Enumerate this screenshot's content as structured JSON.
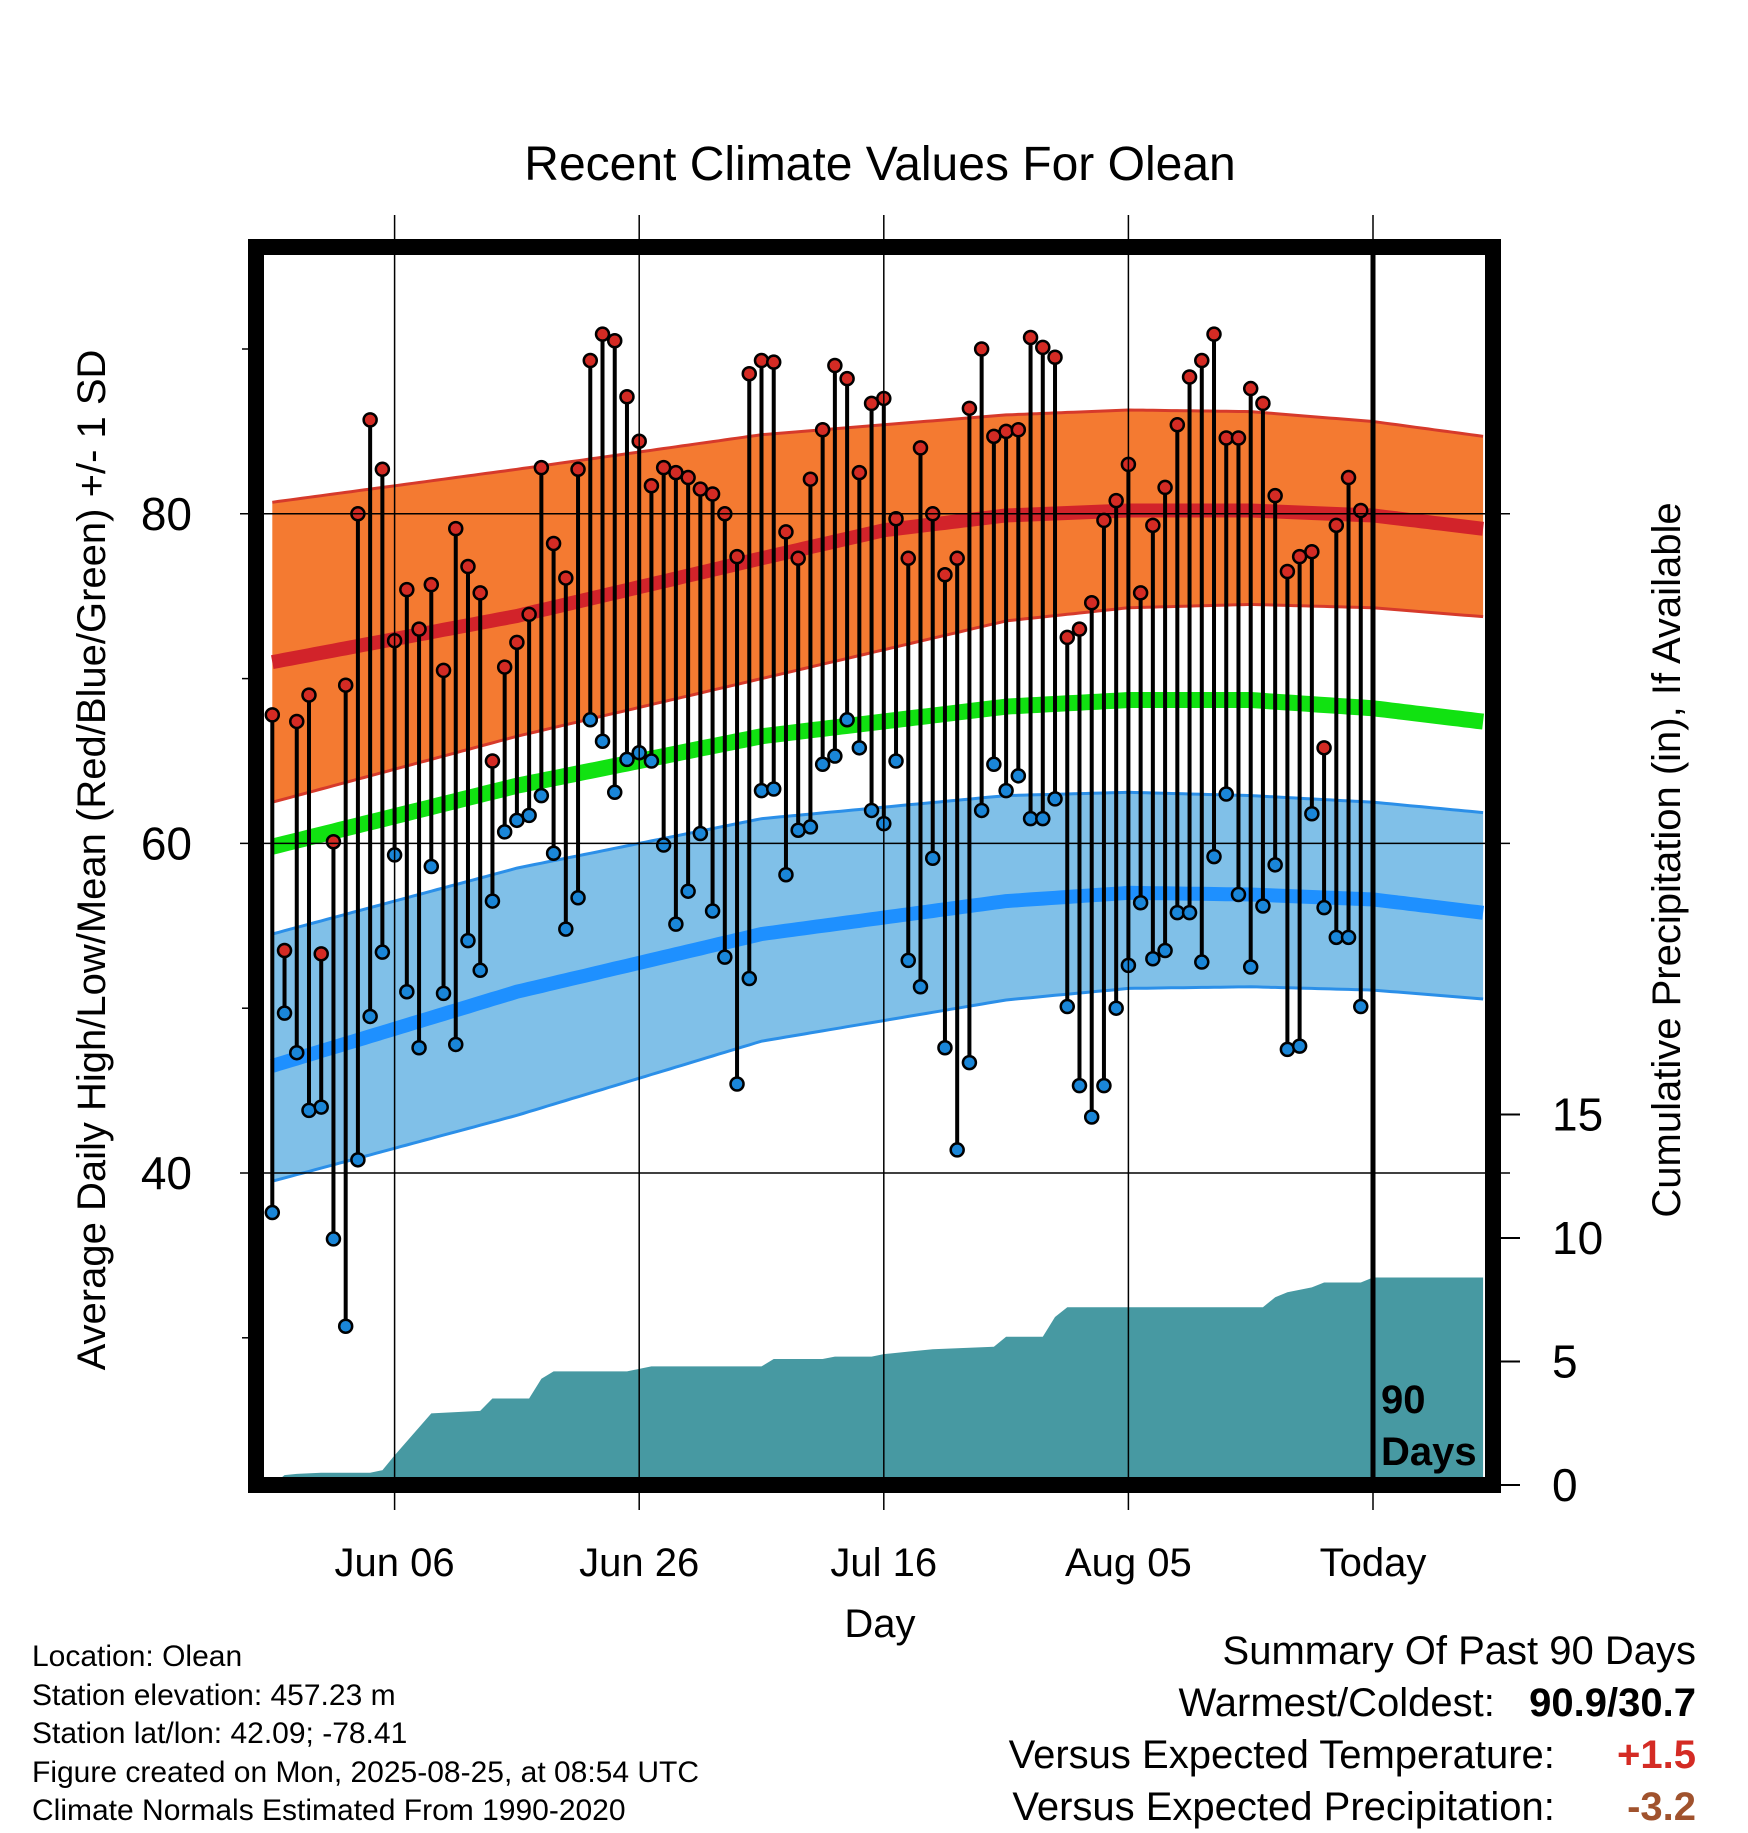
{
  "chart_data": {
    "type": "line",
    "title": "Recent Climate Values For Olean",
    "xlabel": "Day",
    "ylabel": "Average Daily High/Low/Mean (Red/Blue/Green) +/- 1 SD",
    "y2label": "Cumulative Precipitation (in), If Available",
    "x_tick_labels": [
      "Jun 06",
      "Jun 26",
      "Jul 16",
      "Aug 05",
      "Today"
    ],
    "y_tick_labels": [
      "40",
      "60",
      "80"
    ],
    "y2_tick_labels": [
      "0",
      "5",
      "10",
      "15"
    ],
    "today_label": [
      "90",
      "Days"
    ],
    "ylim": [
      23,
      97
    ],
    "y2lim": [
      0,
      15
    ],
    "xlim_days_from_today": [
      -90,
      9
    ],
    "normal_high": {
      "mean_ctrl": [
        [
          -90,
          71.0
        ],
        [
          -64,
          75.5
        ],
        [
          -38,
          78.7
        ],
        [
          -25,
          79.9
        ],
        [
          -20,
          80.2
        ],
        [
          -5,
          80.2
        ],
        [
          5,
          79.4
        ],
        [
          12,
          78.0
        ],
        [
          20,
          76.5
        ],
        [
          26,
          75.0
        ],
        [
          31,
          73.0
        ],
        [
          36,
          71.2
        ],
        [
          9,
          75.7
        ]
      ],
      "mean": [
        [
          -90,
          71.0
        ],
        [
          -70,
          73.8
        ],
        [
          -50,
          77.3
        ],
        [
          -40,
          79.0
        ],
        [
          -30,
          79.9
        ],
        [
          -20,
          80.2
        ],
        [
          -10,
          80.2
        ],
        [
          0,
          79.9
        ],
        [
          10,
          79.0
        ],
        [
          20,
          77.8
        ],
        [
          30,
          76.4
        ],
        [
          40,
          74.8
        ],
        [
          50,
          73.3
        ],
        [
          60,
          71.8
        ],
        [
          70,
          70.3
        ]
      ],
      "upper": [
        [
          -90,
          80.7
        ],
        [
          -70,
          82.7
        ],
        [
          -50,
          84.8
        ],
        [
          -30,
          86.0
        ],
        [
          -20,
          86.3
        ],
        [
          -10,
          86.2
        ],
        [
          0,
          85.6
        ],
        [
          10,
          84.6
        ],
        [
          20,
          83.5
        ],
        [
          27,
          82.5
        ],
        [
          30,
          81.8
        ],
        [
          40,
          79.3
        ],
        [
          50,
          76.7
        ],
        [
          60,
          74.5
        ],
        [
          70,
          73.0
        ]
      ],
      "lower": [
        [
          -90,
          62.5
        ],
        [
          -70,
          66.5
        ],
        [
          -50,
          70.0
        ],
        [
          -30,
          73.5
        ],
        [
          -20,
          74.3
        ],
        [
          -10,
          74.5
        ],
        [
          0,
          74.3
        ],
        [
          10,
          73.7
        ],
        [
          20,
          72.8
        ],
        [
          30,
          71.5
        ],
        [
          40,
          70.0
        ],
        [
          50,
          69.0
        ],
        [
          60,
          68.0
        ],
        [
          70,
          67.0
        ]
      ]
    },
    "normal_mean_line": [
      [
        -90,
        59.8
      ],
      [
        -70,
        63.5
      ],
      [
        -50,
        66.5
      ],
      [
        -30,
        68.3
      ],
      [
        -20,
        68.7
      ],
      [
        -10,
        68.7
      ],
      [
        0,
        68.2
      ],
      [
        10,
        67.3
      ],
      [
        20,
        66.3
      ],
      [
        30,
        65.2
      ],
      [
        40,
        64.0
      ],
      [
        50,
        63.0
      ]
    ],
    "normal_low": {
      "mean": [
        [
          -90,
          46.5
        ],
        [
          -70,
          51.0
        ],
        [
          -50,
          54.5
        ],
        [
          -30,
          56.5
        ],
        [
          -20,
          57.0
        ],
        [
          -10,
          56.9
        ],
        [
          0,
          56.6
        ],
        [
          10,
          55.7
        ],
        [
          20,
          54.5
        ],
        [
          30,
          53.0
        ],
        [
          40,
          51.5
        ],
        [
          50,
          50.0
        ]
      ],
      "upper": [
        [
          -90,
          54.5
        ],
        [
          -70,
          58.5
        ],
        [
          -50,
          61.5
        ],
        [
          -30,
          62.9
        ],
        [
          -20,
          63.1
        ],
        [
          -10,
          62.9
        ],
        [
          0,
          62.5
        ],
        [
          10,
          61.8
        ],
        [
          20,
          60.8
        ],
        [
          30,
          59.6
        ],
        [
          40,
          58.0
        ],
        [
          50,
          56.5
        ]
      ],
      "lower": [
        [
          -90,
          39.5
        ],
        [
          -70,
          43.5
        ],
        [
          -50,
          48.0
        ],
        [
          -30,
          50.5
        ],
        [
          -20,
          51.2
        ],
        [
          -10,
          51.3
        ],
        [
          0,
          51.1
        ],
        [
          10,
          50.5
        ],
        [
          20,
          49.4
        ],
        [
          30,
          48.0
        ],
        [
          40,
          46.0
        ],
        [
          50,
          44.0
        ]
      ]
    },
    "daily": [
      {
        "d": -90,
        "hi": 67.8,
        "lo": 37.6
      },
      {
        "d": -89,
        "hi": 53.5,
        "lo": 49.7
      },
      {
        "d": -88,
        "hi": 67.4,
        "lo": 47.3
      },
      {
        "d": -87,
        "hi": 69.0,
        "lo": 43.8
      },
      {
        "d": -86,
        "hi": 53.3,
        "lo": 44.0
      },
      {
        "d": -85,
        "hi": 60.1,
        "lo": 36.0
      },
      {
        "d": -84,
        "hi": 69.6,
        "lo": 30.7
      },
      {
        "d": -83,
        "hi": 80.0,
        "lo": 40.8
      },
      {
        "d": -82,
        "hi": 85.7,
        "lo": 49.5
      },
      {
        "d": -81,
        "hi": 82.7,
        "lo": 53.4
      },
      {
        "d": -80,
        "hi": 72.3,
        "lo": 59.3
      },
      {
        "d": -79,
        "hi": 75.4,
        "lo": 51.0
      },
      {
        "d": -78,
        "hi": 73.0,
        "lo": 47.6
      },
      {
        "d": -77,
        "hi": 75.7,
        "lo": 58.6
      },
      {
        "d": -76,
        "hi": 70.5,
        "lo": 50.9
      },
      {
        "d": -75,
        "hi": 79.1,
        "lo": 47.8
      },
      {
        "d": -74,
        "hi": 76.8,
        "lo": 54.1
      },
      {
        "d": -73,
        "hi": 75.2,
        "lo": 52.3
      },
      {
        "d": -72,
        "hi": 65.0,
        "lo": 56.5
      },
      {
        "d": -71,
        "hi": 70.7,
        "lo": 60.7
      },
      {
        "d": -70,
        "hi": 72.2,
        "lo": 61.4
      },
      {
        "d": -69,
        "hi": 73.9,
        "lo": 61.7
      },
      {
        "d": -68,
        "hi": 82.8,
        "lo": 62.9
      },
      {
        "d": -67,
        "hi": 78.2,
        "lo": 59.4
      },
      {
        "d": -66,
        "hi": 76.1,
        "lo": 54.8
      },
      {
        "d": -65,
        "hi": 82.7,
        "lo": 56.7
      },
      {
        "d": -64,
        "hi": 89.3,
        "lo": 67.5
      },
      {
        "d": -63,
        "hi": 90.9,
        "lo": 66.2
      },
      {
        "d": -62,
        "hi": 90.5,
        "lo": 63.1
      },
      {
        "d": -61,
        "hi": 87.1,
        "lo": 65.1
      },
      {
        "d": -60,
        "hi": 84.4,
        "lo": 65.5
      },
      {
        "d": -59,
        "hi": 81.7,
        "lo": 65.0
      },
      {
        "d": -58,
        "hi": 82.8,
        "lo": 59.9
      },
      {
        "d": -57,
        "hi": 82.5,
        "lo": 55.1
      },
      {
        "d": -56,
        "hi": 82.2,
        "lo": 57.1
      },
      {
        "d": -55,
        "hi": 81.5,
        "lo": 60.6
      },
      {
        "d": -54,
        "hi": 81.2,
        "lo": 55.9
      },
      {
        "d": -53,
        "hi": 80.0,
        "lo": 53.1
      },
      {
        "d": -52,
        "hi": 77.4,
        "lo": 45.4
      },
      {
        "d": -51,
        "hi": 88.5,
        "lo": 51.8
      },
      {
        "d": -50,
        "hi": 89.3,
        "lo": 63.2
      },
      {
        "d": -49,
        "hi": 89.2,
        "lo": 63.3
      },
      {
        "d": -48,
        "hi": 78.9,
        "lo": 58.1
      },
      {
        "d": -47,
        "hi": 77.3,
        "lo": 60.8
      },
      {
        "d": -46,
        "hi": 82.1,
        "lo": 61.0
      },
      {
        "d": -45,
        "hi": 85.1,
        "lo": 64.8
      },
      {
        "d": -44,
        "hi": 89.0,
        "lo": 65.3
      },
      {
        "d": -43,
        "hi": 88.2,
        "lo": 67.5
      },
      {
        "d": -42,
        "hi": 82.5,
        "lo": 65.8
      },
      {
        "d": -41,
        "hi": 86.7,
        "lo": 62.0
      },
      {
        "d": -40,
        "hi": 87.0,
        "lo": 61.2
      },
      {
        "d": -39,
        "hi": 79.7,
        "lo": 65.0
      },
      {
        "d": -38,
        "hi": 77.3,
        "lo": 52.9
      },
      {
        "d": -37,
        "hi": 84.0,
        "lo": 51.3
      },
      {
        "d": -36,
        "hi": 80.0,
        "lo": 59.1
      },
      {
        "d": -35,
        "hi": 76.3,
        "lo": 47.6
      },
      {
        "d": -34,
        "hi": 77.3,
        "lo": 41.4
      },
      {
        "d": -33,
        "hi": 86.4,
        "lo": 46.7
      },
      {
        "d": -32,
        "hi": 90.0,
        "lo": 62.0
      },
      {
        "d": -31,
        "hi": 84.7,
        "lo": 64.8
      },
      {
        "d": -30,
        "hi": 85.0,
        "lo": 63.2
      },
      {
        "d": -29,
        "hi": 85.1,
        "lo": 64.1
      },
      {
        "d": -28,
        "hi": 90.7,
        "lo": 61.5
      },
      {
        "d": -27,
        "hi": 90.1,
        "lo": 61.5
      },
      {
        "d": -26,
        "hi": 89.5,
        "lo": 62.7
      },
      {
        "d": -25,
        "hi": 72.5,
        "lo": 50.1
      },
      {
        "d": -24,
        "hi": 73.0,
        "lo": 45.3
      },
      {
        "d": -23,
        "hi": 74.6,
        "lo": 43.4
      },
      {
        "d": -22,
        "hi": 79.6,
        "lo": 45.3
      },
      {
        "d": -21,
        "hi": 80.8,
        "lo": 50.0
      },
      {
        "d": -20,
        "hi": 83.0,
        "lo": 52.6
      },
      {
        "d": -19,
        "hi": 75.2,
        "lo": 56.4
      },
      {
        "d": -18,
        "hi": 79.3,
        "lo": 53.0
      },
      {
        "d": -17,
        "hi": 81.6,
        "lo": 53.5
      },
      {
        "d": -16,
        "hi": 85.4,
        "lo": 55.8
      },
      {
        "d": -15,
        "hi": 88.3,
        "lo": 55.8
      },
      {
        "d": -14,
        "hi": 89.3,
        "lo": 52.8
      },
      {
        "d": -13,
        "hi": 90.9,
        "lo": 59.2
      },
      {
        "d": -12,
        "hi": 84.6,
        "lo": 63.0
      },
      {
        "d": -11,
        "hi": 84.6,
        "lo": 56.9
      },
      {
        "d": -10,
        "hi": 87.6,
        "lo": 52.5
      },
      {
        "d": -9,
        "hi": 86.7,
        "lo": 56.2
      },
      {
        "d": -8,
        "hi": 81.1,
        "lo": 58.7
      },
      {
        "d": -7,
        "hi": 76.5,
        "lo": 47.5
      },
      {
        "d": -6,
        "hi": 77.4,
        "lo": 47.7
      },
      {
        "d": -5,
        "hi": 77.7,
        "lo": 61.8
      },
      {
        "d": -4,
        "hi": 65.8,
        "lo": 56.1
      },
      {
        "d": -3,
        "hi": 79.3,
        "lo": 54.3
      },
      {
        "d": -2,
        "hi": 82.2,
        "lo": 54.3
      },
      {
        "d": -1,
        "hi": 80.2,
        "lo": 50.1
      }
    ],
    "cumulative_precip": [
      [
        -90,
        0.0
      ],
      [
        -89,
        0.4
      ],
      [
        -88,
        0.45
      ],
      [
        -86,
        0.5
      ],
      [
        -82,
        0.5
      ],
      [
        -81,
        0.6
      ],
      [
        -80,
        1.2
      ],
      [
        -77,
        2.9
      ],
      [
        -73,
        3.0
      ],
      [
        -72,
        3.5
      ],
      [
        -69,
        3.5
      ],
      [
        -68,
        4.3
      ],
      [
        -67,
        4.6
      ],
      [
        -61,
        4.6
      ],
      [
        -60,
        4.7
      ],
      [
        -59,
        4.8
      ],
      [
        -50,
        4.8
      ],
      [
        -49,
        5.1
      ],
      [
        -45,
        5.1
      ],
      [
        -44,
        5.2
      ],
      [
        -41,
        5.2
      ],
      [
        -40,
        5.3
      ],
      [
        -38,
        5.4
      ],
      [
        -36,
        5.5
      ],
      [
        -31,
        5.6
      ],
      [
        -30,
        6.0
      ],
      [
        -27,
        6.0
      ],
      [
        -26,
        6.8
      ],
      [
        -25,
        7.2
      ],
      [
        -9,
        7.2
      ],
      [
        -8,
        7.6
      ],
      [
        -7,
        7.8
      ],
      [
        -5,
        8.0
      ],
      [
        -4,
        8.2
      ],
      [
        -1,
        8.2
      ],
      [
        0,
        8.4
      ],
      [
        9,
        8.4
      ]
    ],
    "colors": {
      "high_band": "#f47a31",
      "high_line": "#d2232a",
      "high_edge": "#d63a2b",
      "low_band": "#80c0e8",
      "low_line": "#1e90ff",
      "low_edge": "#2b8fe8",
      "mean_line": "#11e211",
      "precip": "#4799a2",
      "hi_dot": "#d42b24",
      "lo_dot": "#1a86d8"
    }
  },
  "info": {
    "location": "Location: Olean",
    "elevation": "Station elevation: 457.23 m",
    "latlon": "Station lat/lon: 42.09; -78.41",
    "created": "Figure created on Mon, 2025-08-25, at 08:54 UTC",
    "normals": "Climate Normals Estimated From 1990-2020"
  },
  "summary": {
    "title": "Summary Of Past 90 Days",
    "warm_label": "Warmest/Coldest:",
    "warm_value": "90.9/30.7",
    "temp_label": "Versus Expected Temperature:",
    "temp_value": "+1.5",
    "temp_color": "#d42b24",
    "precip_label": "Versus Expected Precipitation:",
    "precip_value": "-3.2",
    "precip_color": "#a0522d"
  }
}
